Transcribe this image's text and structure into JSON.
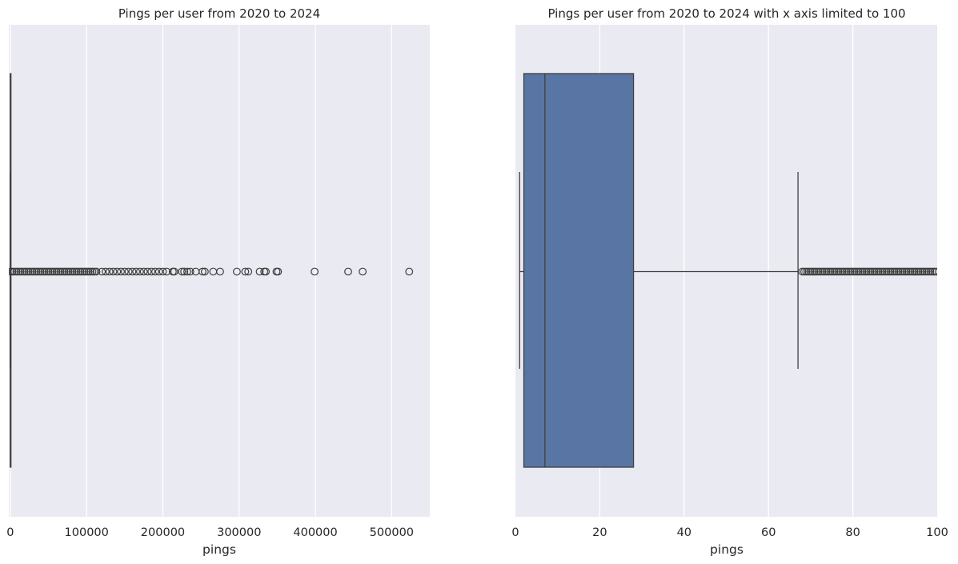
{
  "chart_data": [
    {
      "type": "boxplot",
      "orientation": "horizontal",
      "title": "Pings per user from 2020 to 2024",
      "xlabel": "pings",
      "ylabel": "",
      "xlim": [
        -2000,
        550000
      ],
      "xticks": [
        0,
        100000,
        200000,
        300000,
        400000,
        500000
      ],
      "xtick_labels": [
        "0",
        "100000",
        "200000",
        "300000",
        "400000",
        "500000"
      ],
      "grid": true,
      "box": {
        "q1": 2,
        "median": 7,
        "q3": 28,
        "whisker_low": 1,
        "whisker_high": 67
      },
      "outlier_band": [
        68,
        115000
      ],
      "outliers": [
        120000,
        125000,
        130000,
        135000,
        140000,
        145000,
        150000,
        155000,
        160000,
        165000,
        170000,
        175000,
        180000,
        185000,
        190000,
        195000,
        200000,
        205000,
        213000,
        215000,
        225000,
        228000,
        232000,
        236000,
        243000,
        252000,
        255000,
        266000,
        275000,
        297000,
        308000,
        312000,
        327000,
        333000,
        335000,
        349000,
        351000,
        399000,
        443000,
        462000,
        523000
      ],
      "box_color": "#5975a4",
      "background_color": "#eaeaf2"
    },
    {
      "type": "boxplot",
      "orientation": "horizontal",
      "title": "Pings per user from 2020 to 2024 with x axis limited to 100",
      "xlabel": "pings",
      "ylabel": "",
      "xlim": [
        0,
        100
      ],
      "xticks": [
        0,
        20,
        40,
        60,
        80,
        100
      ],
      "xtick_labels": [
        "0",
        "20",
        "40",
        "60",
        "80",
        "100"
      ],
      "grid": true,
      "box": {
        "q1": 2,
        "median": 7,
        "q3": 28,
        "whisker_low": 1,
        "whisker_high": 67
      },
      "outlier_band": [
        68,
        100
      ],
      "outliers": [],
      "box_color": "#5975a4",
      "background_color": "#eaeaf2"
    }
  ]
}
